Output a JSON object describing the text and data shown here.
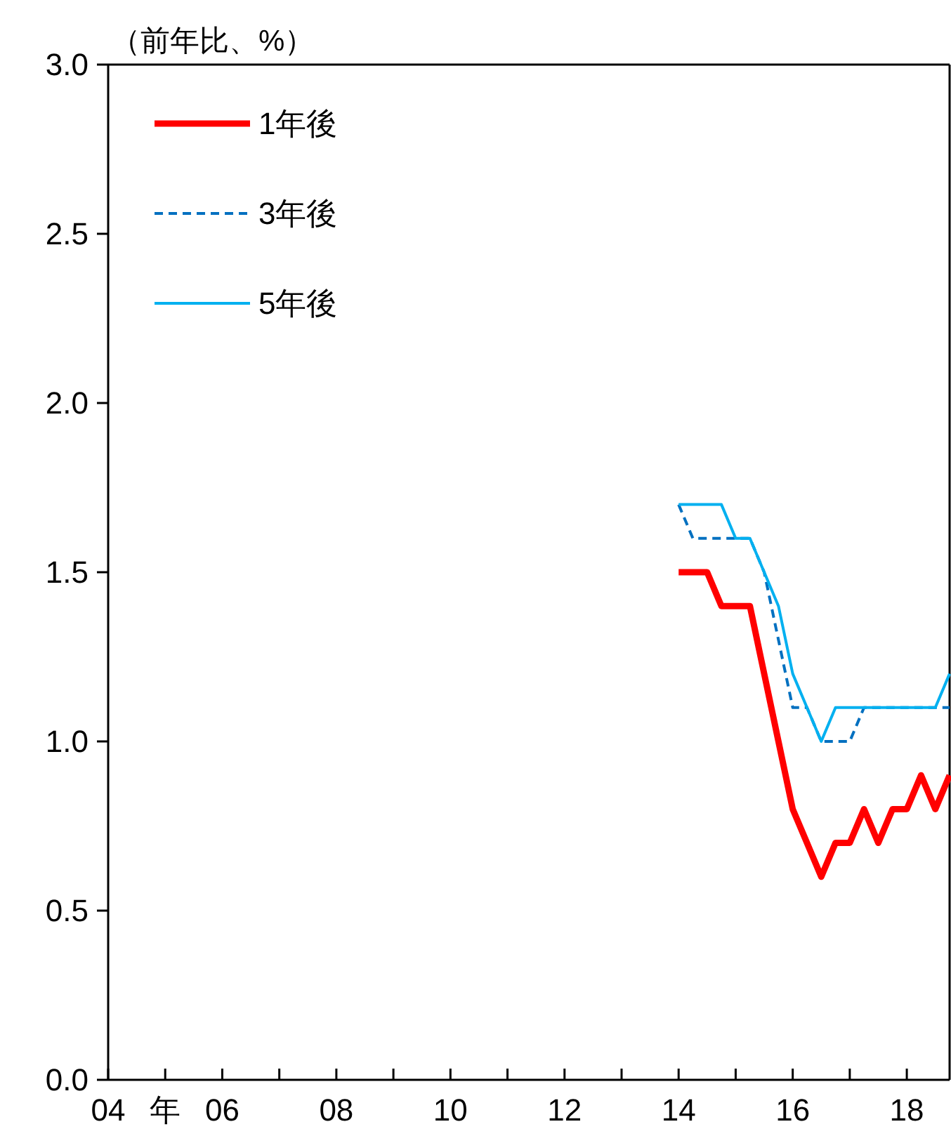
{
  "chart_data": {
    "type": "line",
    "ylabel": "（前年比、%）",
    "x": [
      2014,
      2014.25,
      2014.5,
      2014.75,
      2015,
      2015.25,
      2015.5,
      2015.75,
      2016,
      2016.25,
      2016.5,
      2016.75,
      2017,
      2017.25,
      2017.5,
      2017.75,
      2018,
      2018.25,
      2018.5,
      2018.75
    ],
    "series": [
      {
        "name": "1年後",
        "color": "#ff0000",
        "line_style": "solid",
        "values": [
          1.5,
          1.5,
          1.5,
          1.4,
          1.4,
          1.4,
          1.2,
          1.0,
          0.8,
          0.7,
          0.6,
          0.7,
          0.7,
          0.8,
          0.7,
          0.8,
          0.8,
          0.9,
          0.8,
          0.9
        ]
      },
      {
        "name": "3年後",
        "color": "#0070c0",
        "line_style": "dashed",
        "values": [
          1.7,
          1.6,
          1.6,
          1.6,
          1.6,
          1.6,
          1.5,
          1.3,
          1.1,
          1.1,
          1.0,
          1.0,
          1.0,
          1.1,
          1.1,
          1.1,
          1.1,
          1.1,
          1.1,
          1.1
        ]
      },
      {
        "name": "5年後",
        "color": "#00b0f0",
        "line_style": "solid",
        "values": [
          1.7,
          1.7,
          1.7,
          1.7,
          1.6,
          1.6,
          1.5,
          1.4,
          1.2,
          1.1,
          1.0,
          1.1,
          1.1,
          1.1,
          1.1,
          1.1,
          1.1,
          1.1,
          1.1,
          1.2
        ]
      }
    ],
    "xlim": [
      2004,
      2018.75
    ],
    "xticks": [
      {
        "value": 2004,
        "label": "04"
      },
      {
        "value": 2005,
        "label": "年"
      },
      {
        "value": 2006,
        "label": "06"
      },
      {
        "value": 2007,
        "label": null
      },
      {
        "value": 2008,
        "label": "08"
      },
      {
        "value": 2009,
        "label": null
      },
      {
        "value": 2010,
        "label": "10"
      },
      {
        "value": 2011,
        "label": null
      },
      {
        "value": 2012,
        "label": "12"
      },
      {
        "value": 2013,
        "label": null
      },
      {
        "value": 2014,
        "label": "14"
      },
      {
        "value": 2015,
        "label": null
      },
      {
        "value": 2016,
        "label": "16"
      },
      {
        "value": 2017,
        "label": null
      },
      {
        "value": 2018,
        "label": "18"
      }
    ],
    "ylim": [
      0,
      3
    ],
    "yticks": [
      {
        "value": 0,
        "label": "0.0"
      },
      {
        "value": 0.5,
        "label": "0.5"
      },
      {
        "value": 1,
        "label": "1.0"
      },
      {
        "value": 1.5,
        "label": "1.5"
      },
      {
        "value": 2,
        "label": "2.0"
      },
      {
        "value": 2.5,
        "label": "2.5"
      },
      {
        "value": 3,
        "label": "3.0"
      }
    ],
    "legend": "top left",
    "grid": false,
    "marker": "none"
  }
}
